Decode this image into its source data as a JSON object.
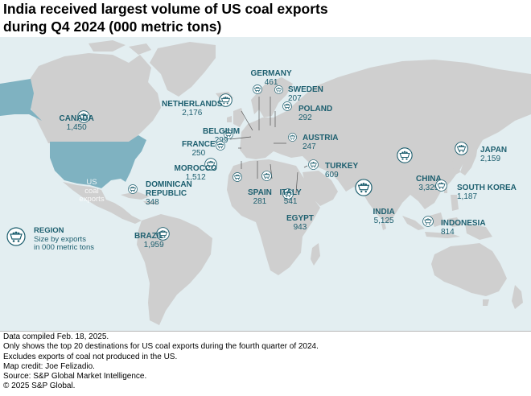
{
  "title_line1": "India received largest volume of US coal exports",
  "title_line2": "during Q4 2024 (000 metric tons)",
  "colors": {
    "ocean": "#e3eef1",
    "land": "#cfcfcf",
    "us": "#7fb2c1",
    "accent": "#1d5f6f",
    "icon_bg": "#ffffff"
  },
  "us_label": {
    "l1": "US",
    "l2": "coal",
    "l3": "exports"
  },
  "legend": {
    "icon": "coal-cart-icon",
    "heading": "REGION",
    "line1": "Size by exports",
    "line2": "in 000 metric tons"
  },
  "destinations": [
    {
      "name": "INDIA",
      "value": "5,125"
    },
    {
      "name": "CHINA",
      "value": "3,329"
    },
    {
      "name": "NETHERLANDS",
      "value": "2,176"
    },
    {
      "name": "JAPAN",
      "value": "2,159"
    },
    {
      "name": "BRAZIL",
      "value": "1,959"
    },
    {
      "name": "MOROCCO",
      "value": "1,512"
    },
    {
      "name": "CANADA",
      "value": "1,450"
    },
    {
      "name": "SOUTH KOREA",
      "value": "1,187"
    },
    {
      "name": "EGYPT",
      "value": "943"
    },
    {
      "name": "INDONESIA",
      "value": "814"
    },
    {
      "name": "TURKEY",
      "value": "609"
    },
    {
      "name": "ITALY",
      "value": "541"
    },
    {
      "name": "GERMANY",
      "value": "461"
    },
    {
      "name": "DOMINICAN",
      "name2": "REPUBLIC",
      "value": "348"
    },
    {
      "name": "BELGIUM",
      "value": "299"
    },
    {
      "name": "POLAND",
      "value": "292"
    },
    {
      "name": "SPAIN",
      "value": "281"
    },
    {
      "name": "FRANCE",
      "value": "250"
    },
    {
      "name": "AUSTRIA",
      "value": "247"
    },
    {
      "name": "SWEDEN",
      "value": "207"
    }
  ],
  "notes": [
    "Data compiled Feb. 18, 2025.",
    "Only shows the top 20 destinations for US coal exports during the fourth quarter of 2024.",
    "Excludes exports of coal not produced in the US.",
    "Map credit: Joe Felizadio.",
    "Source: S&P Global Market Intelligence.",
    "© 2025 S&P Global."
  ]
}
